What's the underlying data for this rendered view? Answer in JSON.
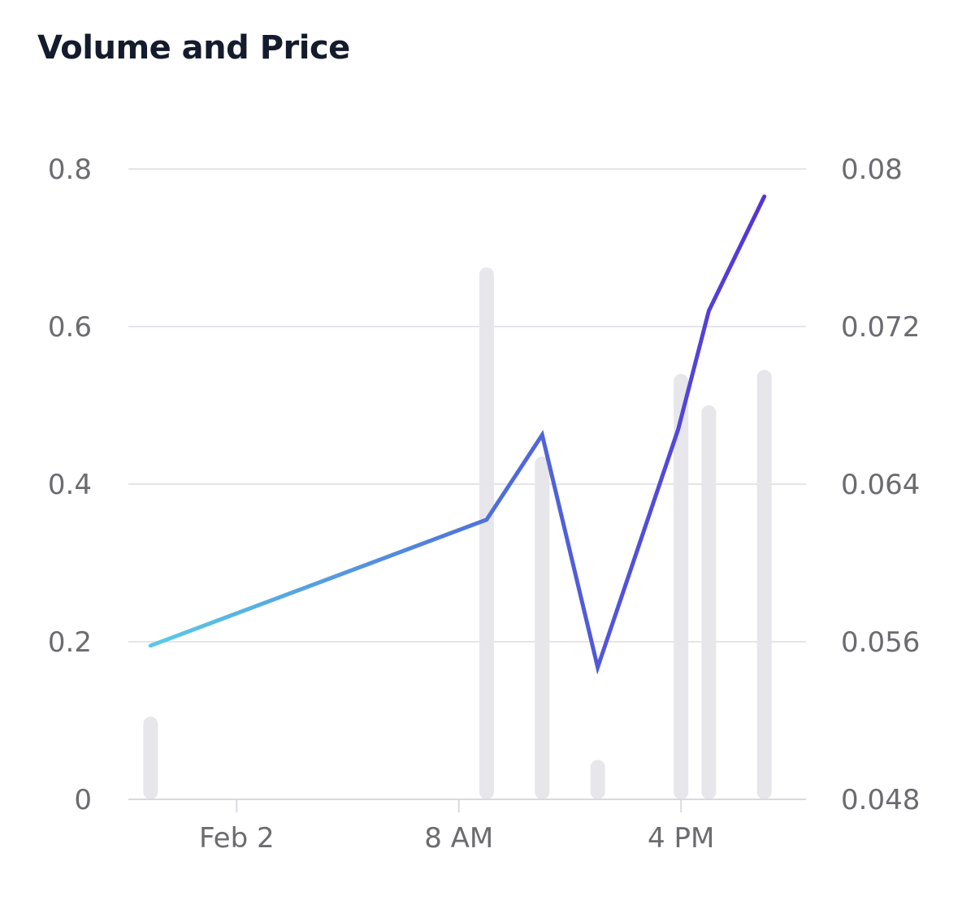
{
  "chart_data": {
    "type": "bar+line",
    "title": "Volume and Price",
    "grid": true,
    "colors": {
      "grid": "#e5e5ea",
      "axis": "#d9d9e0",
      "bars": "#e6e6eb",
      "line_start": "#5bc8e6",
      "line_mid": "#4f6fd9",
      "line_end": "#5533d6",
      "tick_text": "#6b6b70",
      "title_text": "#141b2d"
    },
    "x_axis": {
      "ticks": [
        {
          "label": "Feb 2",
          "hour": 0
        },
        {
          "label": "8 AM",
          "hour": 8
        },
        {
          "label": "4 PM",
          "hour": 16
        }
      ],
      "range_hours": [
        -3.9,
        20.5
      ]
    },
    "y_axis_left": {
      "ticks": [
        "0",
        "0.2",
        "0.4",
        "0.6",
        "0.8"
      ],
      "tick_values": [
        0,
        0.2,
        0.4,
        0.6,
        0.8
      ],
      "range": [
        0,
        0.8
      ]
    },
    "y_axis_right": {
      "ticks": [
        "0.048",
        "0.056",
        "0.064",
        "0.072",
        "0.08"
      ],
      "tick_values": [
        0.048,
        0.056,
        0.064,
        0.072,
        0.08
      ],
      "range": [
        0.048,
        0.08
      ]
    },
    "volume_bars": [
      {
        "hour": -3.1,
        "value": 0.105
      },
      {
        "hour": 9.0,
        "value": 0.675
      },
      {
        "hour": 11.0,
        "value": 0.435
      },
      {
        "hour": 13.0,
        "value": 0.05
      },
      {
        "hour": 16.0,
        "value": 0.54
      },
      {
        "hour": 17.0,
        "value": 0.5
      },
      {
        "hour": 19.0,
        "value": 0.545
      }
    ],
    "price_line": [
      {
        "hour": -3.1,
        "value": 0.0558
      },
      {
        "hour": 9.0,
        "value": 0.0622
      },
      {
        "hour": 11.0,
        "value": 0.0665
      },
      {
        "hour": 13.0,
        "value": 0.0547
      },
      {
        "hour": 15.9,
        "value": 0.0668
      },
      {
        "hour": 17.0,
        "value": 0.0728
      },
      {
        "hour": 19.0,
        "value": 0.0786
      }
    ]
  }
}
